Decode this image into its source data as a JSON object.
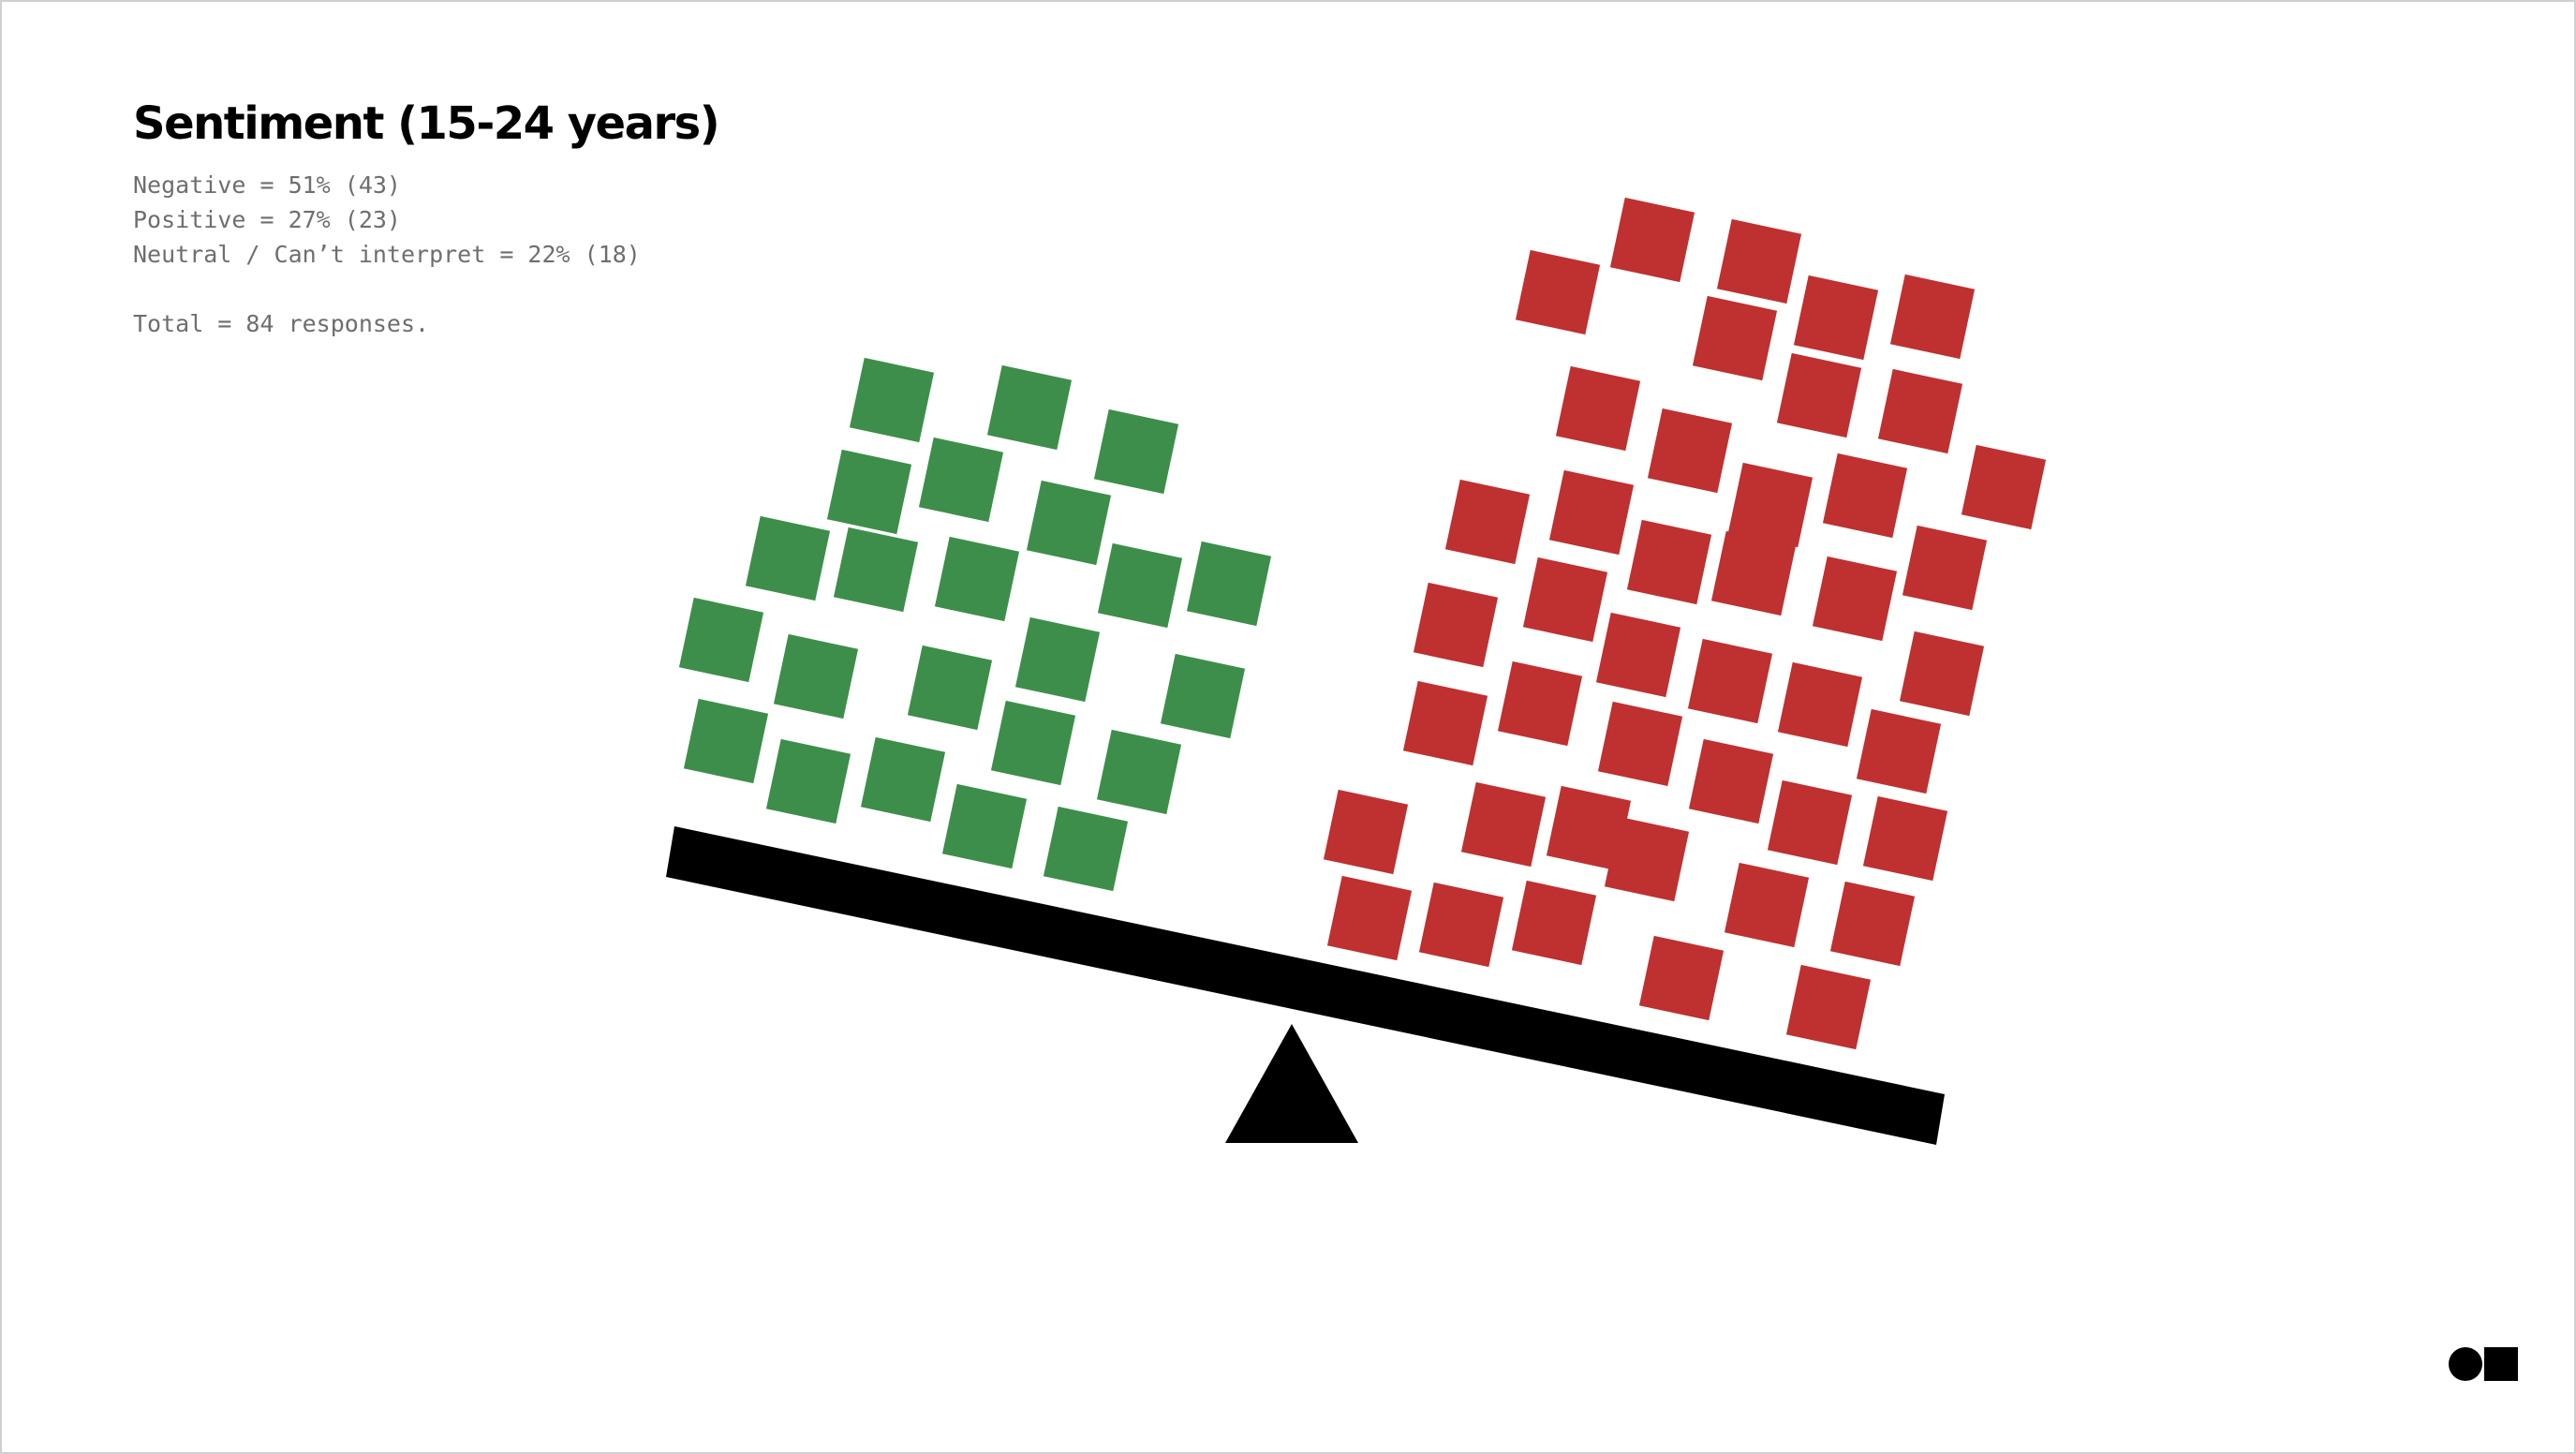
{
  "title": "Sentiment (15-24 years)",
  "stats": {
    "negative": "Negative = 51% (43)",
    "positive": "Positive = 27% (23)",
    "neutral": "Neutral / Can’t interpret = 22% (18)",
    "total": "Total = 84 responses."
  },
  "chart_data": {
    "type": "pictogram-balance",
    "groups": [
      {
        "name": "Positive",
        "count": 23,
        "color": "#3e8e4b",
        "side": "left"
      },
      {
        "name": "Negative",
        "count": 43,
        "color": "#bf3030",
        "side": "right"
      }
    ]
  },
  "colors": {
    "positive": "#3e8e4b",
    "negative": "#bf3030",
    "beam": "#000000",
    "fulcrum": "#000000"
  },
  "icons": {
    "logo": "circle-square-logo"
  }
}
